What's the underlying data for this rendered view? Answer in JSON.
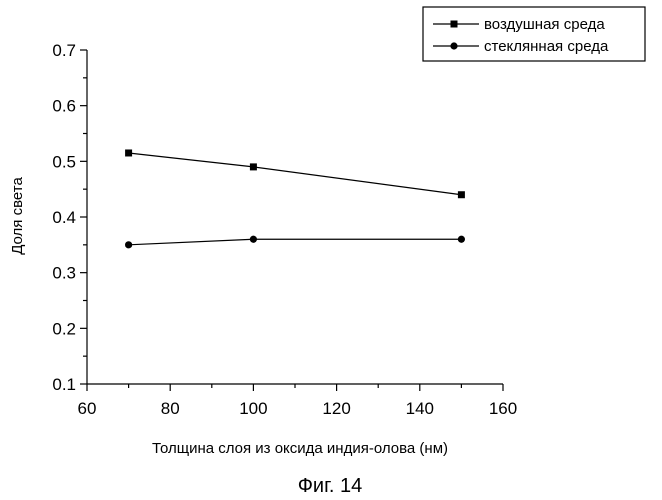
{
  "caption": "Фиг. 14",
  "chart_data": {
    "type": "line",
    "title": "",
    "xlabel": "Толщина слоя из оксида индия-олова (нм)",
    "ylabel": "Доля света",
    "xlim": [
      60,
      160
    ],
    "ylim": [
      0.1,
      0.7
    ],
    "xticks": [
      60,
      80,
      100,
      120,
      140,
      160
    ],
    "yticks": [
      0.1,
      0.2,
      0.3,
      0.4,
      0.5,
      0.6,
      0.7
    ],
    "xtick_labels": [
      "60",
      "80",
      "100",
      "120",
      "140",
      "160"
    ],
    "ytick_labels": [
      "0.1",
      "0.2",
      "0.3",
      "0.4",
      "0.5",
      "0.6",
      "0.7"
    ],
    "grid": false,
    "legend_position": "top-right",
    "series": [
      {
        "name": "воздушная среда",
        "marker": "square",
        "color": "#000000",
        "x": [
          70,
          100,
          150
        ],
        "y": [
          0.515,
          0.49,
          0.44
        ]
      },
      {
        "name": "стеклянная среда",
        "marker": "circle",
        "color": "#000000",
        "x": [
          70,
          100,
          150
        ],
        "y": [
          0.35,
          0.36,
          0.36
        ]
      }
    ]
  }
}
